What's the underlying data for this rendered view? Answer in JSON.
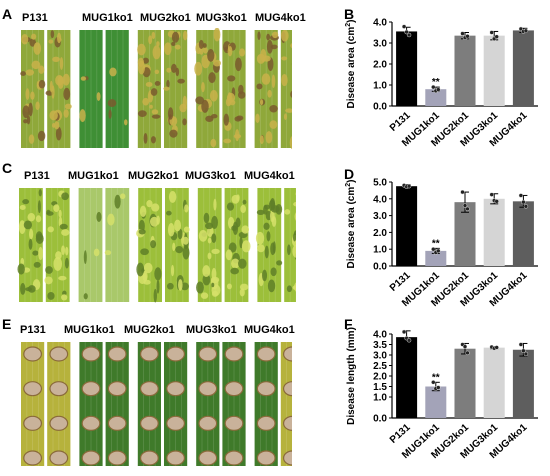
{
  "panels": [
    {
      "letter": "A",
      "type": "photo",
      "labels": [
        "P131",
        "MUG1ko1",
        "MUG2ko1",
        "MUG3ko1",
        "MUG4ko1"
      ],
      "leaf_style": "yellow-green",
      "colors": {
        "base": "#8fa83a",
        "light": "#c9b24a",
        "lesion": "#7a5a2e",
        "bg": "#ffffff"
      }
    },
    {
      "letter": "C",
      "type": "photo",
      "labels": [
        "P131",
        "MUG1ko1",
        "MUG2ko1",
        "MUG3ko1",
        "MUG4ko1"
      ],
      "leaf_style": "mottled-green",
      "colors": {
        "base": "#9cbf3a",
        "light": "#d6e06a",
        "lesion": "#5f7f28",
        "bg": "#ffffff"
      }
    },
    {
      "letter": "E",
      "type": "photo",
      "labels": [
        "P131",
        "MUG1ko1",
        "MUG2ko1",
        "MUG3ko1",
        "MUG4ko1"
      ],
      "leaf_style": "spotted",
      "colors": {
        "base": "#3f7a2a",
        "light": "#b9b246",
        "lesion": "#c9b29a",
        "bg": "#ffffff"
      }
    }
  ],
  "chart_data": [
    {
      "letter": "B",
      "type": "bar",
      "categories": [
        "P131",
        "MUG1ko1",
        "MUG2ko1",
        "MUG3ko1",
        "MUG4ko1"
      ],
      "values": [
        3.55,
        0.8,
        3.35,
        3.35,
        3.6
      ],
      "errors": [
        0.2,
        0.1,
        0.15,
        0.2,
        0.1
      ],
      "points": [
        [
          3.78,
          3.52,
          3.38
        ],
        [
          0.9,
          0.72,
          0.78
        ],
        [
          3.45,
          3.25,
          3.32
        ],
        [
          3.5,
          3.2,
          3.3
        ],
        [
          3.67,
          3.55,
          3.58
        ]
      ],
      "annotations": [
        {
          "category": "MUG1ko1",
          "text": "**"
        }
      ],
      "ylabel": "Disease area (cm",
      "ylabel_sup": "2",
      "ylabel_tail": ")",
      "ylim": [
        0.0,
        4.0
      ],
      "yticks": [
        "0.0",
        "1.0",
        "2.0",
        "3.0",
        "4.0"
      ],
      "colors": [
        "#000000",
        "#a3a3b8",
        "#7d7d7d",
        "#d5d5d5",
        "#5e5e5e"
      ]
    },
    {
      "letter": "D",
      "type": "bar",
      "categories": [
        "P131",
        "MUG1ko1",
        "MUG2ko1",
        "MUG3ko1",
        "MUG4ko1"
      ],
      "values": [
        4.75,
        0.9,
        3.8,
        4.0,
        3.85
      ],
      "errors": [
        0.1,
        0.15,
        0.6,
        0.3,
        0.35
      ],
      "points": [
        [
          4.8,
          4.72,
          4.75
        ],
        [
          1.0,
          0.8,
          0.9
        ],
        [
          4.4,
          3.6,
          3.4
        ],
        [
          4.25,
          3.9,
          3.85
        ],
        [
          4.2,
          3.8,
          3.55
        ]
      ],
      "annotations": [
        {
          "category": "MUG1ko1",
          "text": "**"
        }
      ],
      "ylabel": "Disease area (cm",
      "ylabel_sup": "2",
      "ylabel_tail": ")",
      "ylim": [
        0.0,
        5.0
      ],
      "yticks": [
        "0.0",
        "1.0",
        "2.0",
        "3.0",
        "4.0",
        "5.0"
      ],
      "colors": [
        "#000000",
        "#a3a3b8",
        "#7d7d7d",
        "#d5d5d5",
        "#5e5e5e"
      ]
    },
    {
      "letter": "F",
      "type": "bar",
      "categories": [
        "P131",
        "MUG1ko1",
        "MUG2ko1",
        "MUG3ko1",
        "MUG4ko1"
      ],
      "values": [
        3.85,
        1.5,
        3.3,
        3.35,
        3.25
      ],
      "errors": [
        0.3,
        0.2,
        0.25,
        0.05,
        0.3
      ],
      "points": [
        [
          4.1,
          3.8,
          3.7
        ],
        [
          1.7,
          1.4,
          1.45
        ],
        [
          3.5,
          3.4,
          3.1
        ],
        [
          3.38,
          3.32,
          3.36
        ],
        [
          3.5,
          3.2,
          3.05
        ]
      ],
      "annotations": [
        {
          "category": "MUG1ko1",
          "text": "**"
        }
      ],
      "ylabel": "Disease length (mm)",
      "ylabel_sup": "",
      "ylabel_tail": "",
      "ylim": [
        0.0,
        4.0
      ],
      "yticks": [
        "0.0",
        "1.0",
        "1.5",
        "2.0",
        "2.5",
        "3.0",
        "3.5",
        "4.0"
      ],
      "yticks_values": [
        0.0,
        1.0,
        1.5,
        2.0,
        2.5,
        3.0,
        3.5,
        4.0
      ],
      "colors": [
        "#000000",
        "#a3a3b8",
        "#7d7d7d",
        "#d5d5d5",
        "#5e5e5e"
      ]
    }
  ]
}
